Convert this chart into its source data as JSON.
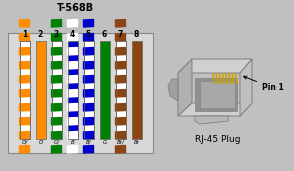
{
  "title": "T-568B",
  "fig_bg": "#c0c0c0",
  "panel_bg": "#d8d8d8",
  "pin_numbers": [
    "1",
    "2",
    "3",
    "4",
    "5",
    "6",
    "7",
    "8"
  ],
  "wires": [
    {
      "solid": "#ffffff",
      "stripe": "#ff8c00",
      "label": "O/"
    },
    {
      "solid": "#ff8c00",
      "stripe": null,
      "label": "O"
    },
    {
      "solid": "#ffffff",
      "stripe": "#008000",
      "label": "G/"
    },
    {
      "solid": "#0000cc",
      "stripe": "#ffffff",
      "label": "B"
    },
    {
      "solid": "#ffffff",
      "stripe": "#0000cc",
      "label": "B/"
    },
    {
      "solid": "#008000",
      "stripe": null,
      "label": "G"
    },
    {
      "solid": "#ffffff",
      "stripe": "#8B4513",
      "label": "Br/"
    },
    {
      "solid": "#8B4513",
      "stripe": null,
      "label": "Br"
    }
  ],
  "rj45_label": "RJ-45 Plug",
  "pin1_label": "Pin 1"
}
